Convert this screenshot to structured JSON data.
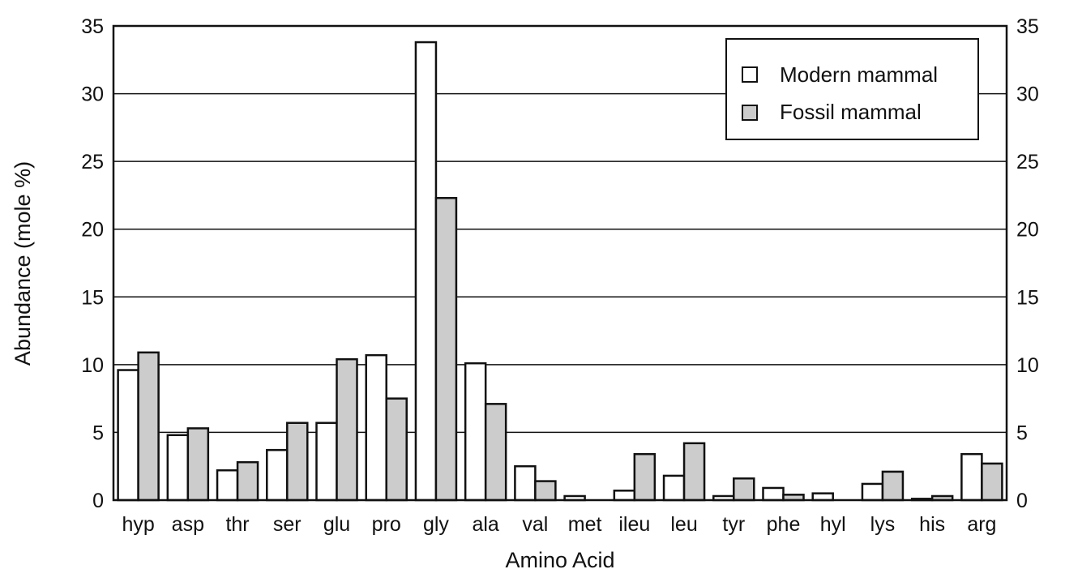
{
  "chart_data": {
    "type": "bar",
    "title": "",
    "xlabel": "Amino Acid",
    "ylabel": "Abundance (mole %)",
    "ylim": [
      0,
      35
    ],
    "yticks": [
      0,
      5,
      10,
      15,
      20,
      25,
      30,
      35
    ],
    "grid": "horizontal",
    "legend_position": "top-right",
    "categories": [
      "hyp",
      "asp",
      "thr",
      "ser",
      "glu",
      "pro",
      "gly",
      "ala",
      "val",
      "met",
      "ileu",
      "leu",
      "tyr",
      "phe",
      "hyl",
      "lys",
      "his",
      "arg"
    ],
    "series": [
      {
        "name": "Modern mammal",
        "color": "#ffffff",
        "values": [
          9.6,
          4.8,
          2.2,
          3.7,
          5.7,
          10.7,
          33.8,
          10.1,
          2.5,
          0.3,
          0.7,
          1.8,
          0.3,
          0.9,
          0.5,
          1.2,
          0.1,
          3.4
        ]
      },
      {
        "name": "Fossil mammal",
        "color": "#cccccc",
        "values": [
          10.9,
          5.3,
          2.8,
          5.7,
          10.4,
          7.5,
          22.3,
          7.1,
          1.4,
          0,
          3.4,
          4.2,
          1.6,
          0.4,
          0,
          2.1,
          0.3,
          2.7
        ]
      }
    ]
  }
}
